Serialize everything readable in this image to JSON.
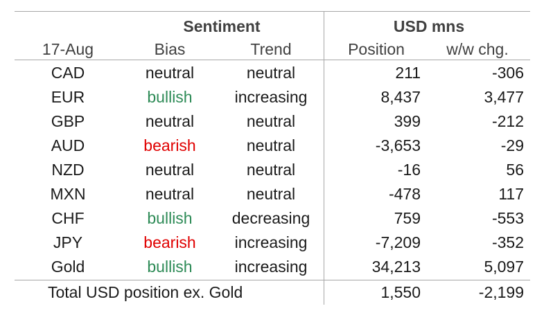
{
  "header": {
    "group_sentiment": "Sentiment",
    "group_usd": "USD mns",
    "col_date": "17-Aug",
    "col_bias": "Bias",
    "col_trend": "Trend",
    "col_position": "Position",
    "col_change": "w/w chg."
  },
  "rows": [
    {
      "currency": "CAD",
      "bias": "neutral",
      "bias_type": "neutral",
      "trend": "neutral",
      "position": "211",
      "change": "-306"
    },
    {
      "currency": "EUR",
      "bias": "bullish",
      "bias_type": "bullish",
      "trend": "increasing",
      "position": "8,437",
      "change": "3,477"
    },
    {
      "currency": "GBP",
      "bias": "neutral",
      "bias_type": "neutral",
      "trend": "neutral",
      "position": "399",
      "change": "-212"
    },
    {
      "currency": "AUD",
      "bias": "bearish",
      "bias_type": "bearish",
      "trend": "neutral",
      "position": "-3,653",
      "change": "-29"
    },
    {
      "currency": "NZD",
      "bias": "neutral",
      "bias_type": "neutral",
      "trend": "neutral",
      "position": "-16",
      "change": "56"
    },
    {
      "currency": "MXN",
      "bias": "neutral",
      "bias_type": "neutral",
      "trend": "neutral",
      "position": "-478",
      "change": "117"
    },
    {
      "currency": "CHF",
      "bias": "bullish",
      "bias_type": "bullish",
      "trend": "decreasing",
      "position": "759",
      "change": "-553"
    },
    {
      "currency": "JPY",
      "bias": "bearish",
      "bias_type": "bearish",
      "trend": "increasing",
      "position": "-7,209",
      "change": "-352"
    },
    {
      "currency": "Gold",
      "bias": "bullish",
      "bias_type": "bullish",
      "trend": "increasing",
      "position": "34,213",
      "change": "5,097"
    }
  ],
  "total": {
    "label": "Total USD position ex. Gold",
    "position": "1,550",
    "change": "-2,199"
  },
  "colors": {
    "bullish": "#2e8b57",
    "bearish": "#e00000",
    "neutral": "#1a1a1a",
    "rule": "#a6a6a6"
  }
}
